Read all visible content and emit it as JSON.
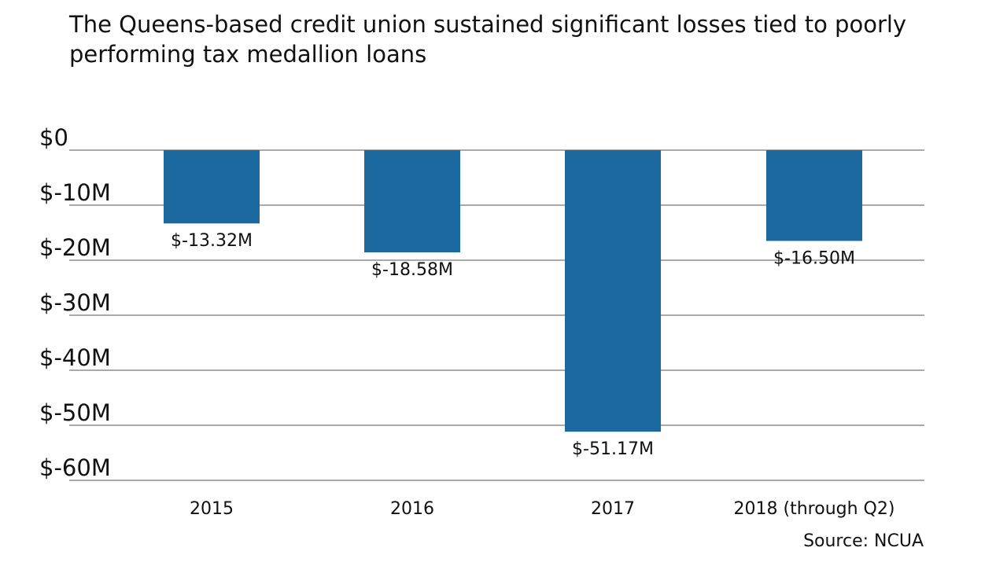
{
  "chart_data": {
    "type": "bar",
    "subtitle": "The Queens-based credit union sustained significant losses tied to poorly performing tax medallion loans",
    "categories": [
      "2015",
      "2016",
      "2017",
      "2018 (through Q2)"
    ],
    "values": [
      -13.32,
      -18.58,
      -51.17,
      -16.5
    ],
    "data_labels": [
      "$-13.32M",
      "$-18.58M",
      "$-51.17M",
      "$-16.50M"
    ],
    "yticks": [
      0,
      -10,
      -20,
      -30,
      -40,
      -50,
      -60
    ],
    "ytick_labels": [
      "$0",
      "$-10M",
      "$-20M",
      "$-30M",
      "$-40M",
      "$-50M",
      "$-60M"
    ],
    "ylim": [
      -60,
      0
    ],
    "unit": "million USD",
    "grid": true,
    "bar_color": "#1c69a0",
    "source": "Source: NCUA"
  }
}
